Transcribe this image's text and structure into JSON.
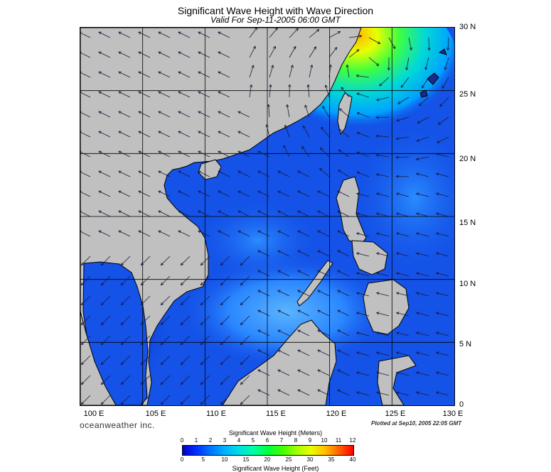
{
  "header": {
    "title": "Significant Wave Height with Wave Direction",
    "subtitle": "Valid For Sep-11-2005 06:00 GMT"
  },
  "map": {
    "lon_range": [
      100,
      130
    ],
    "lat_range": [
      0,
      30
    ],
    "lat_labels": [
      "30 N",
      "25 N",
      "20 N",
      "15 N",
      "10 N",
      "5 N",
      "0"
    ],
    "lon_labels": [
      "100 E",
      "105 E",
      "110 E",
      "115 E",
      "120 E",
      "125 E",
      "130 E"
    ],
    "gridlines": true,
    "colors": {
      "land": "#c0c0c0",
      "coast": "#000000",
      "sea_base": "#1452e8",
      "arrow": "#1a1a3a"
    }
  },
  "footer": {
    "brand": "oceanweather inc.",
    "plotted": "Plotted at Sep10, 2005 22:05 GMT"
  },
  "colorbar": {
    "title_meters": "Significant Wave Height (Meters)",
    "title_feet": "Significant Wave Height (Feet)",
    "meters_ticks": [
      "0",
      "1",
      "2",
      "3",
      "4",
      "5",
      "6",
      "7",
      "8",
      "9",
      "10",
      "11",
      "12"
    ],
    "feet_ticks": [
      "0",
      "5",
      "10",
      "15",
      "20",
      "25",
      "30",
      "35",
      "40"
    ],
    "stops": [
      "#0000c8",
      "#0032ff",
      "#0078ff",
      "#00b4ff",
      "#00e0e0",
      "#00ffa0",
      "#00ff40",
      "#40ff00",
      "#a0ff00",
      "#e8ff00",
      "#ffc000",
      "#ff6000",
      "#ff0000"
    ]
  }
}
